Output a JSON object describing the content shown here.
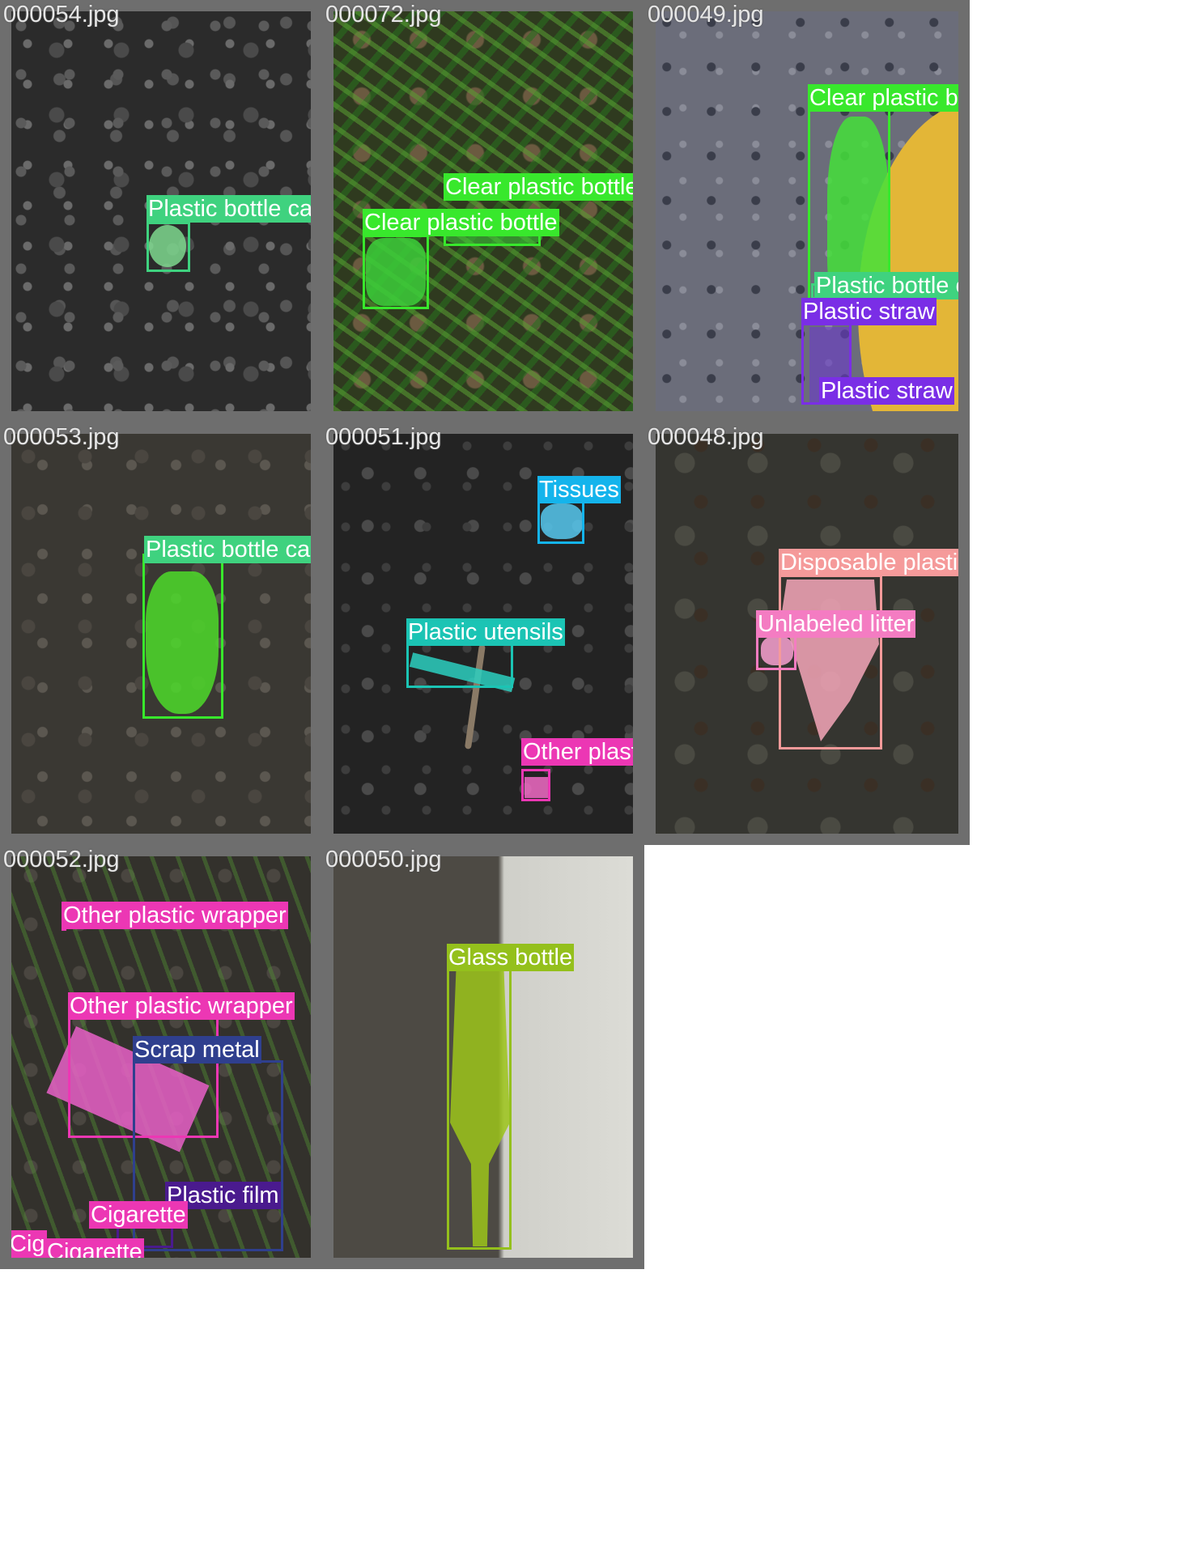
{
  "tiles": [
    {
      "filename": "000054.jpg",
      "labels": [
        "Plastic bottle cap"
      ],
      "colors": {
        "plastic_bottle_cap": "#3fd27f"
      }
    },
    {
      "filename": "000072.jpg",
      "labels": [
        "Clear plastic bottle",
        "Clear plastic bottle"
      ],
      "colors": {
        "clear_plastic_bottle": "#38e82c"
      }
    },
    {
      "filename": "000049.jpg",
      "labels": [
        "Clear plastic bott",
        "Plastic bottle ca",
        "Plastic straw",
        "Plastic straw"
      ],
      "colors": {
        "clear_plastic_bottle": "#38e82c",
        "plastic_bottle_cap": "#3fd27f",
        "plastic_straw": "#7a2ee6"
      }
    },
    {
      "filename": "000053.jpg",
      "labels": [
        "Plastic bottle cape"
      ],
      "colors": {
        "plastic_bottle_cap": "#3fd27f",
        "clear_plastic_bottle": "#38e82c"
      }
    },
    {
      "filename": "000051.jpg",
      "labels": [
        "Tissues",
        "Plastic utensils",
        "Other plastic wrapper"
      ],
      "colors": {
        "tissues": "#14b4ec",
        "plastic_utensils": "#1bc4b4",
        "other_plastic_wrapper": "#ec37b4"
      }
    },
    {
      "filename": "000048.jpg",
      "labels": [
        "Disposable plastic c",
        "Unlabeled litter"
      ],
      "colors": {
        "disposable_plastic_cup": "#f59a9a",
        "unlabeled_litter": "#f47cc2"
      }
    },
    {
      "filename": "000052.jpg",
      "labels": [
        "Other plastic wrapper",
        "Other plastic wrapper",
        "Scrap metal",
        "Plastic film",
        "Cigarette",
        "Cig",
        "Cigarette"
      ],
      "colors": {
        "other_plastic_wrapper": "#ec37b4",
        "scrap_metal": "#2f3f8e",
        "plastic_film": "#4a1a8e",
        "cigarette": "#ec37b4"
      }
    },
    {
      "filename": "000050.jpg",
      "labels": [
        "Glass bottle"
      ],
      "colors": {
        "glass_bottle": "#94c01c"
      }
    }
  ]
}
